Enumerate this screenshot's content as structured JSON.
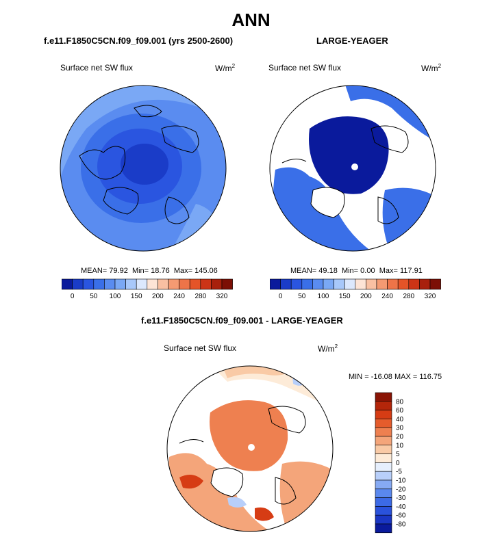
{
  "main_title": "ANN",
  "panel_left": {
    "title": "f.e11.F1850C5CN.f09_f09.001 (yrs 2500-2600)",
    "variable": "Surface net SW flux",
    "units_base": "W/m",
    "units_exp": "2",
    "stats": {
      "mean_label": "MEAN=",
      "mean": "79.92",
      "min_label": "Min=",
      "min": "18.76",
      "max_label": "Max=",
      "max": "145.06"
    }
  },
  "panel_right": {
    "title": "LARGE-YEAGER",
    "variable": "Surface net SW flux",
    "units_base": "W/m",
    "units_exp": "2",
    "stats": {
      "mean_label": "MEAN=",
      "mean": "49.18",
      "min_label": "Min=",
      "min": "0.00",
      "max_label": "Max=",
      "max": "117.91"
    }
  },
  "panel_diff": {
    "title": "f.e11.F1850C5CN.f09_f09.001 - LARGE-YEAGER",
    "variable": "Surface net SW flux",
    "units_base": "W/m",
    "units_exp": "2",
    "minmax": "MIN = -16.08 MAX = 116.75"
  },
  "colorbar_abs": {
    "colors": [
      "#0a1a9c",
      "#1a3cc8",
      "#2a55e0",
      "#3a6fe8",
      "#5a8cf0",
      "#7aa8f5",
      "#a8c8fa",
      "#dce8fd",
      "#fde4d6",
      "#f9c0a2",
      "#f49a72",
      "#ee7448",
      "#e45428",
      "#cc3416",
      "#a8200c",
      "#7c0f05"
    ],
    "tick_labels": [
      "0",
      "50",
      "100",
      "150",
      "200",
      "240",
      "280",
      "320"
    ]
  },
  "colorbar_diff": {
    "colors": [
      "#0a1a9c",
      "#1a36c4",
      "#2a52dc",
      "#3c6ae6",
      "#5a88ee",
      "#86aaf4",
      "#b8cffa",
      "#e6effd",
      "#fdebd8",
      "#f9caa6",
      "#f4a57a",
      "#ee8050",
      "#e55c2c",
      "#d63c14",
      "#b4260a",
      "#8a1405"
    ],
    "tick_labels": [
      "80",
      "60",
      "40",
      "30",
      "20",
      "10",
      "5",
      "0",
      "-5",
      "-10",
      "-20",
      "-30",
      "-40",
      "-60",
      "-80"
    ]
  },
  "chart_data": [
    {
      "type": "heatmap",
      "projection": "north-polar-stereographic",
      "title": "f.e11.F1850C5CN.f09_f09.001 (yrs 2500-2600)",
      "variable": "Surface net SW flux",
      "units": "W/m^2",
      "mean": 79.92,
      "min": 18.76,
      "max": 145.06,
      "colorbar_range": [
        0,
        320
      ],
      "colorbar_levels": [
        0,
        25,
        50,
        75,
        100,
        125,
        150,
        175,
        200,
        220,
        240,
        260,
        280,
        300,
        320
      ]
    },
    {
      "type": "heatmap",
      "projection": "north-polar-stereographic",
      "title": "LARGE-YEAGER",
      "variable": "Surface net SW flux",
      "units": "W/m^2",
      "mean": 49.18,
      "min": 0.0,
      "max": 117.91,
      "colorbar_range": [
        0,
        320
      ],
      "colorbar_levels": [
        0,
        25,
        50,
        75,
        100,
        125,
        150,
        175,
        200,
        220,
        240,
        260,
        280,
        300,
        320
      ]
    },
    {
      "type": "heatmap",
      "projection": "north-polar-stereographic",
      "title": "f.e11.F1850C5CN.f09_f09.001 - LARGE-YEAGER",
      "variable": "Surface net SW flux",
      "units": "W/m^2",
      "min": -16.08,
      "max": 116.75,
      "colorbar_levels": [
        -80,
        -60,
        -40,
        -30,
        -20,
        -10,
        -5,
        0,
        5,
        10,
        20,
        30,
        40,
        60,
        80
      ]
    }
  ]
}
